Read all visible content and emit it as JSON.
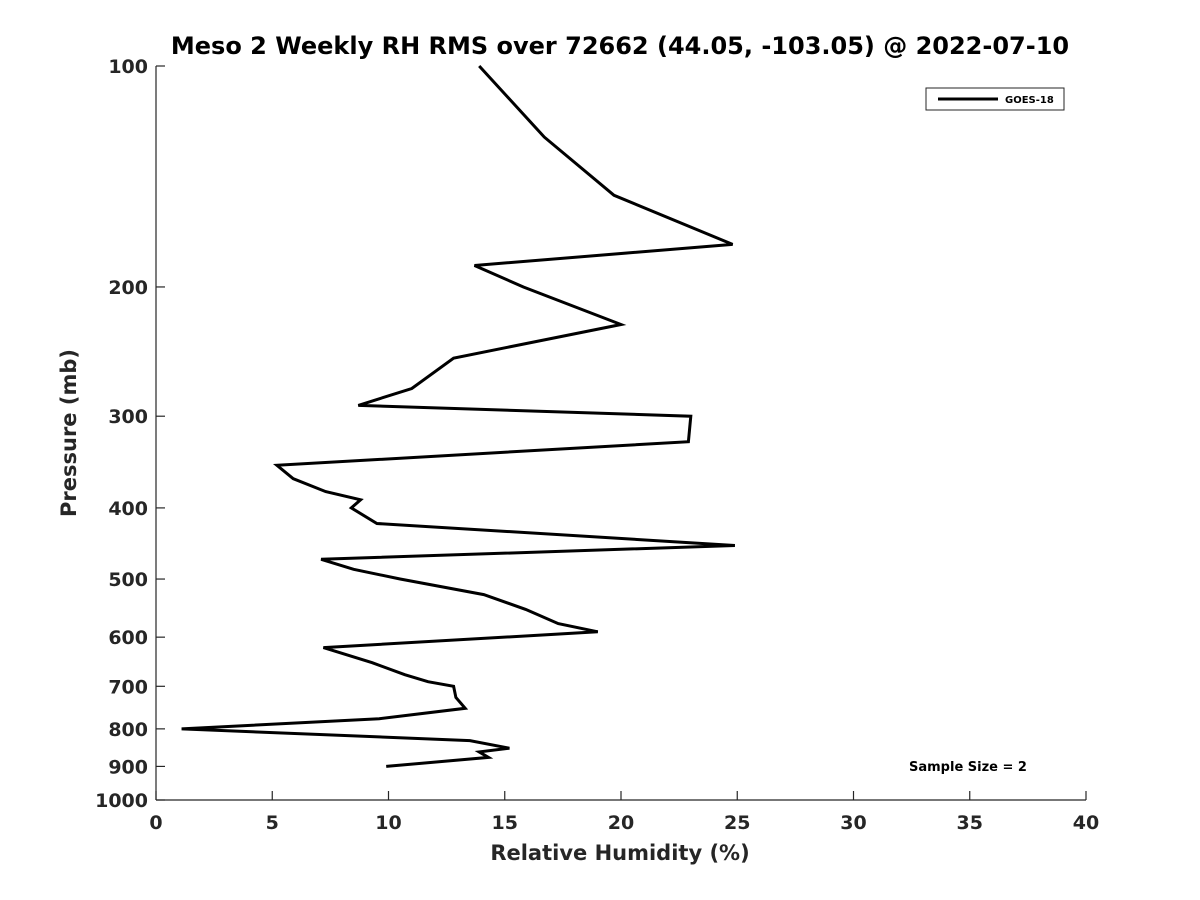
{
  "chart_data": {
    "type": "line",
    "title": "Meso 2 Weekly RH RMS over 72662 (44.05, -103.05) @ 2022-07-10",
    "xlabel": "Relative Humidity (%)",
    "ylabel": "Pressure (mb)",
    "xlim": [
      0,
      40
    ],
    "ylim": [
      100,
      1000
    ],
    "y_scale": "log",
    "y_reversed": true,
    "grid": false,
    "legend_position": "top-right",
    "x_ticks": [
      "0",
      "5",
      "10",
      "15",
      "20",
      "25",
      "30",
      "35",
      "40"
    ],
    "y_ticks": [
      "100",
      "200",
      "300",
      "400",
      "500",
      "600",
      "700",
      "800",
      "900",
      "1000"
    ],
    "annotation": "Sample Size = 2",
    "series": [
      {
        "name": "GOES-18",
        "color": "#000000",
        "points": [
          {
            "rh": 13.9,
            "p": 100
          },
          {
            "rh": 16.7,
            "p": 125
          },
          {
            "rh": 19.7,
            "p": 150
          },
          {
            "rh": 24.8,
            "p": 175
          },
          {
            "rh": 13.7,
            "p": 187
          },
          {
            "rh": 15.8,
            "p": 200
          },
          {
            "rh": 20.0,
            "p": 225
          },
          {
            "rh": 12.8,
            "p": 250
          },
          {
            "rh": 11.0,
            "p": 275
          },
          {
            "rh": 8.7,
            "p": 290
          },
          {
            "rh": 23.0,
            "p": 300
          },
          {
            "rh": 22.9,
            "p": 325
          },
          {
            "rh": 5.2,
            "p": 350
          },
          {
            "rh": 5.9,
            "p": 365
          },
          {
            "rh": 7.3,
            "p": 380
          },
          {
            "rh": 8.8,
            "p": 390
          },
          {
            "rh": 8.4,
            "p": 400
          },
          {
            "rh": 9.5,
            "p": 420
          },
          {
            "rh": 24.9,
            "p": 450
          },
          {
            "rh": 7.1,
            "p": 470
          },
          {
            "rh": 8.5,
            "p": 485
          },
          {
            "rh": 10.5,
            "p": 500
          },
          {
            "rh": 14.1,
            "p": 525
          },
          {
            "rh": 15.9,
            "p": 550
          },
          {
            "rh": 17.3,
            "p": 575
          },
          {
            "rh": 19.0,
            "p": 590
          },
          {
            "rh": 7.2,
            "p": 620
          },
          {
            "rh": 9.3,
            "p": 650
          },
          {
            "rh": 10.7,
            "p": 675
          },
          {
            "rh": 11.7,
            "p": 690
          },
          {
            "rh": 12.8,
            "p": 700
          },
          {
            "rh": 12.9,
            "p": 725
          },
          {
            "rh": 13.3,
            "p": 750
          },
          {
            "rh": 9.6,
            "p": 775
          },
          {
            "rh": 1.1,
            "p": 800
          },
          {
            "rh": 13.5,
            "p": 830
          },
          {
            "rh": 15.2,
            "p": 850
          },
          {
            "rh": 13.9,
            "p": 860
          },
          {
            "rh": 14.3,
            "p": 875
          },
          {
            "rh": 9.9,
            "p": 900
          }
        ]
      }
    ]
  }
}
